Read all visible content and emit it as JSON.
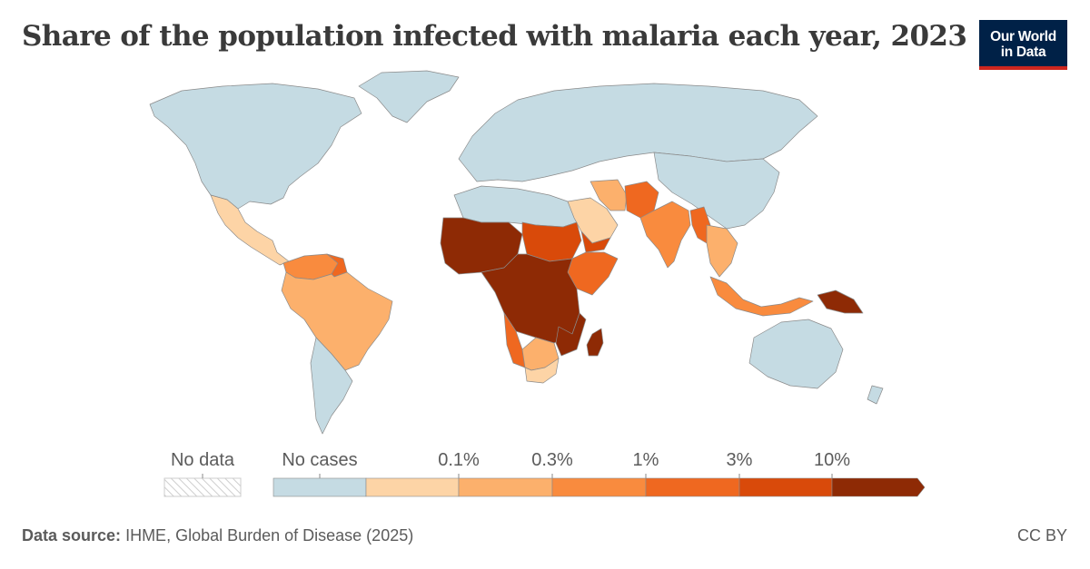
{
  "header": {
    "title": "Share of the population infected with malaria each year, 2023",
    "logo_line1": "Our World",
    "logo_line2": "in Data"
  },
  "legend": {
    "no_data_label": "No data",
    "bins": [
      {
        "label": "No cases",
        "color": "#c5dbe3"
      },
      {
        "label": "",
        "color": "#fdd4a6"
      },
      {
        "label": "0.1%",
        "color": "#fcb06c"
      },
      {
        "label": "0.3%",
        "color": "#f98b3e"
      },
      {
        "label": "1%",
        "color": "#ef6820"
      },
      {
        "label": "3%",
        "color": "#d94a0a"
      },
      {
        "label": "10%",
        "color": "#8e2a05"
      }
    ],
    "tick_labels": [
      "0.1%",
      "0.3%",
      "1%",
      "3%",
      "10%"
    ]
  },
  "footer": {
    "source_label": "Data source:",
    "source_text": "IHME, Global Burden of Disease (2025)",
    "license": "CC BY"
  },
  "colors": {
    "no_cases": "#c5dbe3",
    "bin_lt_0_1": "#fdd4a6",
    "bin_0_1_0_3": "#fcb06c",
    "bin_0_3_1": "#f98b3e",
    "bin_1_3": "#ef6820",
    "bin_3_10": "#d94a0a",
    "bin_gt_10": "#8e2a05",
    "border": "#8a8a8a"
  },
  "map_regions": [
    {
      "name": "North America",
      "category": "No cases"
    },
    {
      "name": "Europe and Russia",
      "category": "No cases"
    },
    {
      "name": "East Asia",
      "category": "No cases"
    },
    {
      "name": "Australia",
      "category": "No cases"
    },
    {
      "name": "Southern South America",
      "category": "No cases"
    },
    {
      "name": "Greenland",
      "category": "No cases"
    },
    {
      "name": "North Africa",
      "category": "No cases"
    },
    {
      "name": "Mexico and Central America",
      "category": "lt 0.1%"
    },
    {
      "name": "Arabian Peninsula",
      "category": "lt 0.1%"
    },
    {
      "name": "South Africa",
      "category": "lt 0.1%"
    },
    {
      "name": "Brazil and Andes",
      "category": "0.1%–0.3%"
    },
    {
      "name": "Iran",
      "category": "0.1%–0.3%"
    },
    {
      "name": "Mainland Southeast Asia",
      "category": "0.1%–0.3%"
    },
    {
      "name": "India",
      "category": "0.3%–1%"
    },
    {
      "name": "Indonesia",
      "category": "0.3%–1%"
    },
    {
      "name": "Colombia and Venezuela",
      "category": "0.3%–1%"
    },
    {
      "name": "Pakistan and Afghanistan",
      "category": "1%–3%"
    },
    {
      "name": "Myanmar",
      "category": "1%–3%"
    },
    {
      "name": "Horn of Africa",
      "category": "1%–3%"
    },
    {
      "name": "Sudan and Yemen",
      "category": "3%–10%"
    },
    {
      "name": "West Africa",
      "category": "gt 10%"
    },
    {
      "name": "Central Africa",
      "category": "gt 10%"
    },
    {
      "name": "Madagascar",
      "category": "gt 10%"
    },
    {
      "name": "Papua New Guinea",
      "category": "gt 10%"
    }
  ]
}
